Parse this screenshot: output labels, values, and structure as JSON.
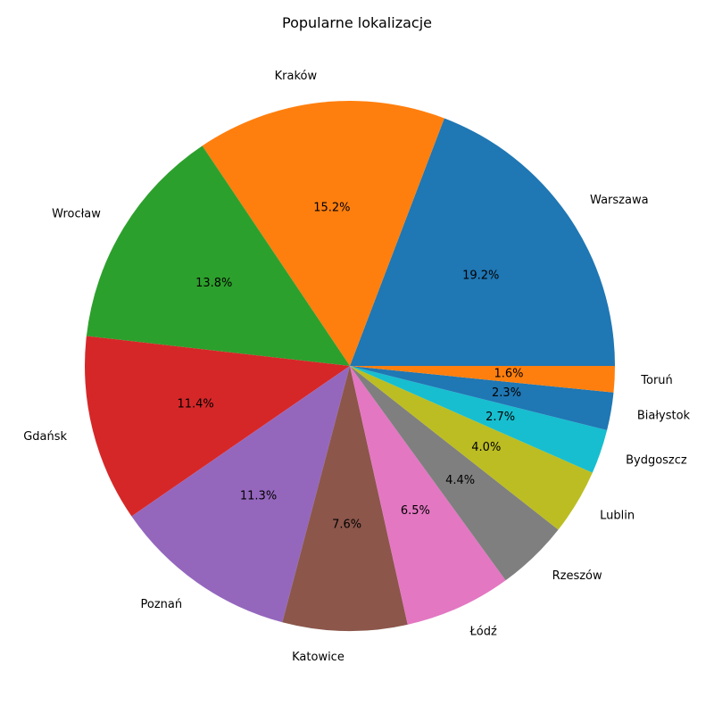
{
  "chart_data": {
    "type": "pie",
    "title": "Popularne lokalizacje",
    "slices": [
      {
        "label": "Warszawa",
        "value": 19.2,
        "pct_label": "19.2%",
        "color": "#1f77b4"
      },
      {
        "label": "Kraków",
        "value": 15.2,
        "pct_label": "15.2%",
        "color": "#ff7f0e"
      },
      {
        "label": "Wrocław",
        "value": 13.8,
        "pct_label": "13.8%",
        "color": "#2ca02c"
      },
      {
        "label": "Gdańsk",
        "value": 11.4,
        "pct_label": "11.4%",
        "color": "#d62728"
      },
      {
        "label": "Poznań",
        "value": 11.3,
        "pct_label": "11.3%",
        "color": "#9467bd"
      },
      {
        "label": "Katowice",
        "value": 7.6,
        "pct_label": "7.6%",
        "color": "#8c564b"
      },
      {
        "label": "Łódź",
        "value": 6.5,
        "pct_label": "6.5%",
        "color": "#e377c2"
      },
      {
        "label": "Rzeszów",
        "value": 4.4,
        "pct_label": "4.4%",
        "color": "#7f7f7f"
      },
      {
        "label": "Lublin",
        "value": 4.0,
        "pct_label": "4.0%",
        "color": "#bcbd22"
      },
      {
        "label": "Bydgoszcz",
        "value": 2.7,
        "pct_label": "2.7%",
        "color": "#17becf"
      },
      {
        "label": "Białystok",
        "value": 2.3,
        "pct_label": "2.3%",
        "color": "#1f77b4"
      },
      {
        "label": "Toruń",
        "value": 1.6,
        "pct_label": "1.6%",
        "color": "#ff7f0e"
      }
    ]
  }
}
